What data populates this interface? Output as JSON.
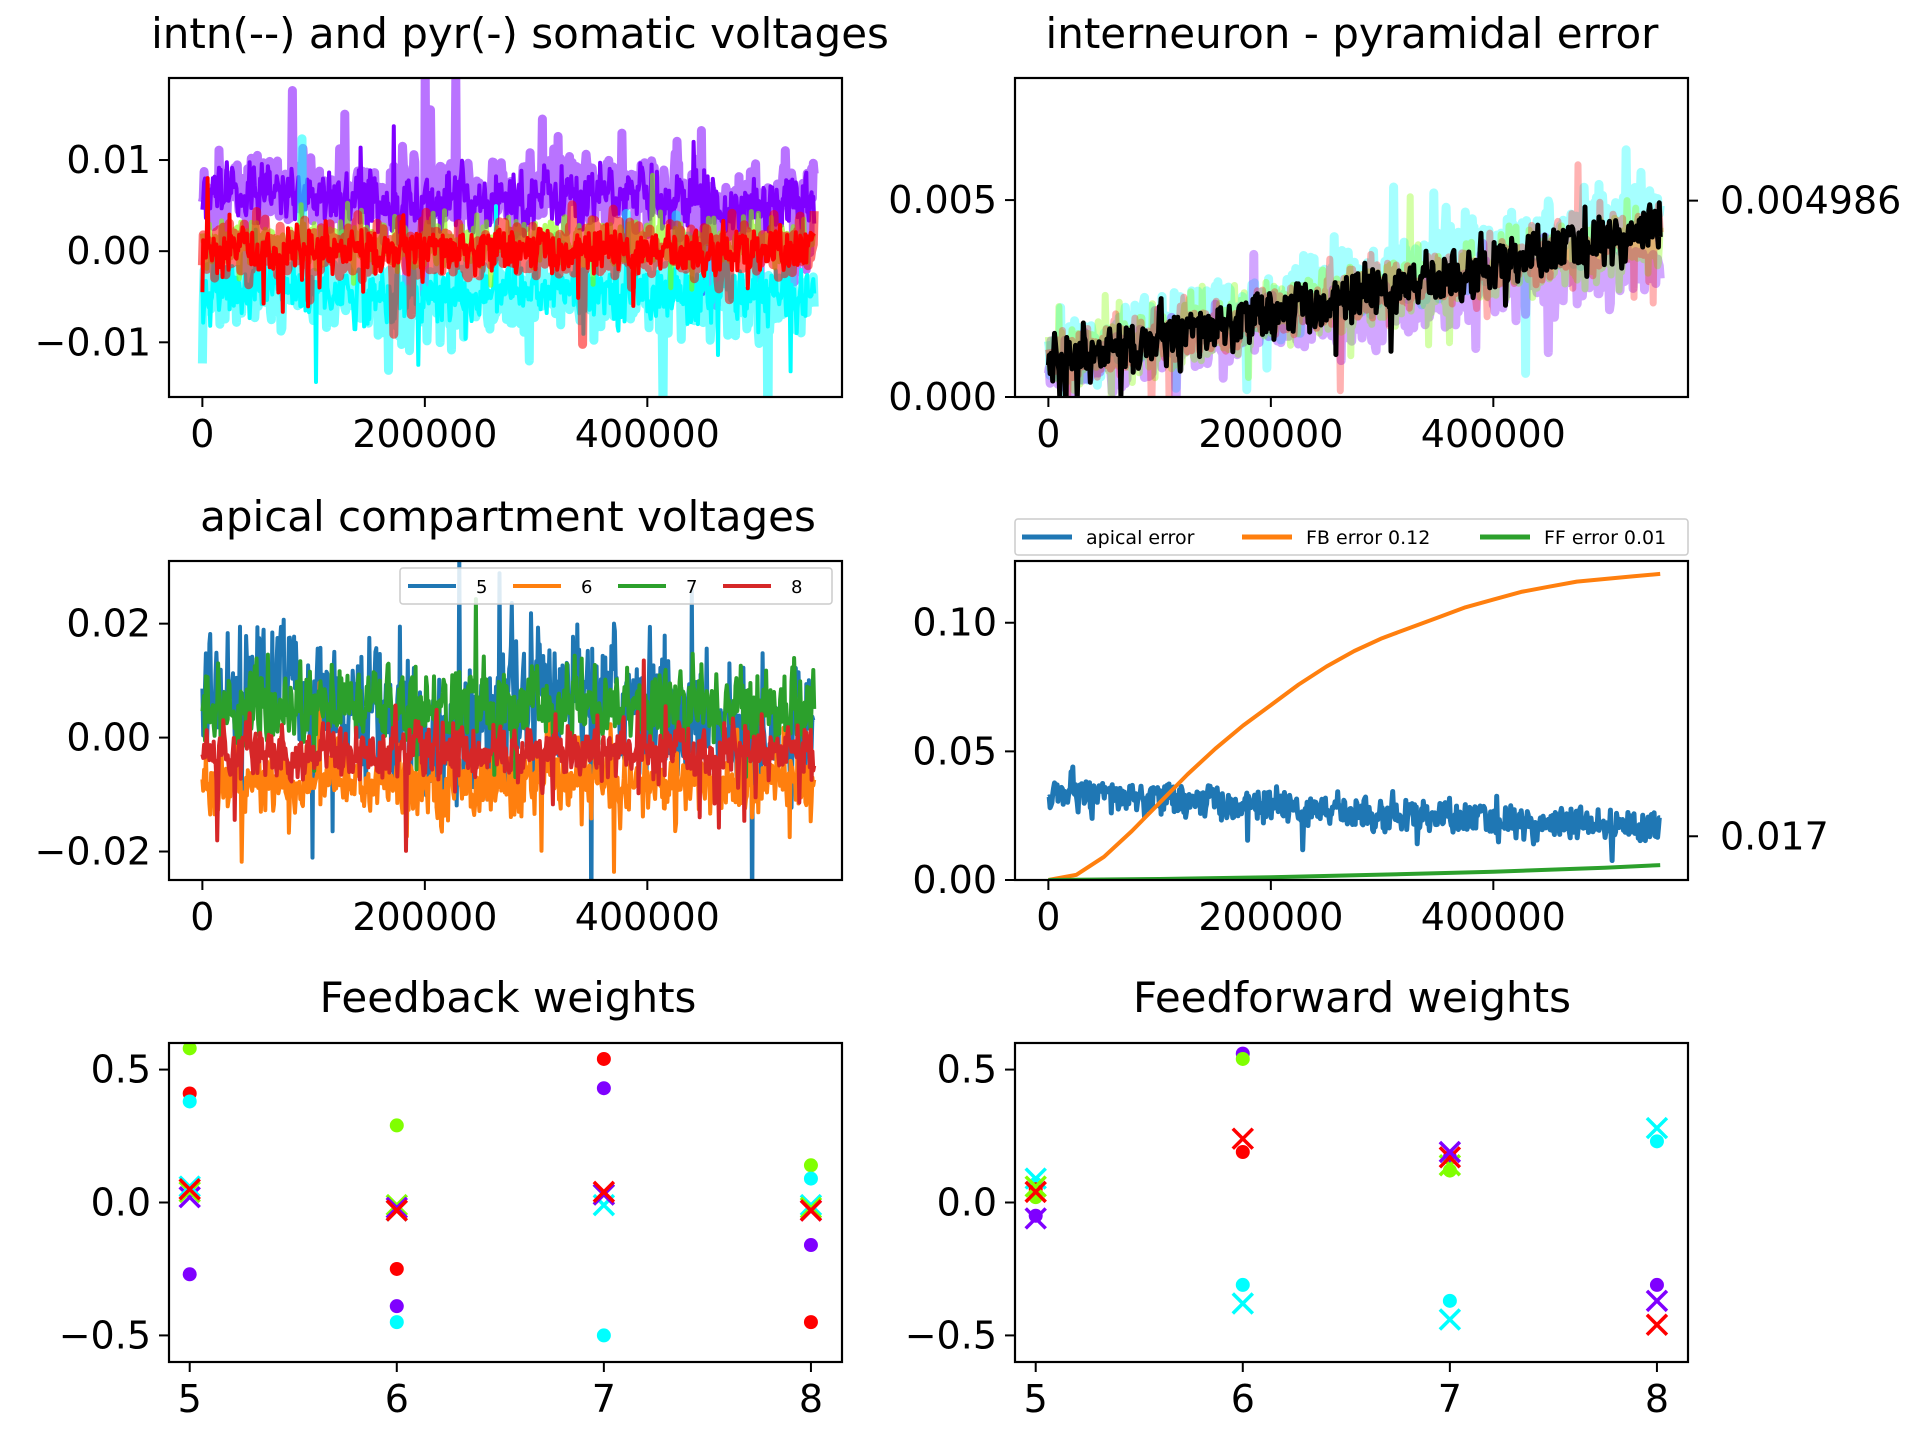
{
  "figure": {
    "background": "#ffffff"
  },
  "chart_data": [
    {
      "id": "somatic",
      "type": "line",
      "title": "intn(--) and pyr(-) somatic voltages",
      "xlim": [
        -30000,
        575000
      ],
      "ylim": [
        -0.016,
        0.019
      ],
      "xticks": [
        0,
        200000,
        400000
      ],
      "xtick_labels": [
        "0",
        "200000",
        "400000"
      ],
      "yticks": [
        0.01,
        0.0,
        -0.01
      ],
      "ytick_labels": [
        "0.01",
        "0.00",
        "−0.01"
      ],
      "x_range": [
        0,
        550000
      ],
      "series": [
        {
          "color": "#7f00ff",
          "mean": 0.006,
          "noise": 0.0025,
          "trend": 0.0005,
          "alpha": 0.55,
          "width": 9
        },
        {
          "color": "#7f00ff",
          "mean": 0.0058,
          "noise": 0.002,
          "trend": 0.0005,
          "alpha": 1.0,
          "width": 4
        },
        {
          "color": "#00ffff",
          "mean": -0.0048,
          "noise": 0.0025,
          "trend": 0.0005,
          "alpha": 0.55,
          "width": 9
        },
        {
          "color": "#00ffff",
          "mean": -0.0045,
          "noise": 0.0019,
          "trend": 0.0005,
          "alpha": 1.0,
          "width": 4
        },
        {
          "color": "#80ff00",
          "mean": 0.0008,
          "noise": 0.0016,
          "trend": 0.0,
          "alpha": 0.6,
          "width": 5
        },
        {
          "color": "#ff0000",
          "mean": 0.0002,
          "noise": 0.0018,
          "trend": 0.0,
          "alpha": 0.55,
          "width": 9
        },
        {
          "color": "#ff0000",
          "mean": 0.0,
          "noise": 0.0015,
          "trend": 0.0,
          "alpha": 1.0,
          "width": 4
        }
      ]
    },
    {
      "id": "intn_pyr_error",
      "type": "line",
      "title": "interneuron - pyramidal error",
      "xlim": [
        -30000,
        575000
      ],
      "ylim": [
        0.0,
        0.0081
      ],
      "xticks": [
        0,
        200000,
        400000
      ],
      "xtick_labels": [
        "0",
        "200000",
        "400000"
      ],
      "yticks": [
        0.0,
        0.005
      ],
      "ytick_labels": [
        "0.000",
        "0.005"
      ],
      "right_ytick": {
        "value": 0.004986,
        "label": "0.004986"
      },
      "x_range": [
        0,
        550000
      ],
      "series": [
        {
          "color": "#00ffff",
          "start": 0.001,
          "end": 0.0048,
          "noise": 0.0005,
          "alpha": 0.35,
          "width": 9
        },
        {
          "color": "#7f00ff",
          "start": 0.0007,
          "end": 0.0034,
          "noise": 0.0004,
          "alpha": 0.35,
          "width": 9
        },
        {
          "color": "#80ff00",
          "start": 0.0009,
          "end": 0.004,
          "noise": 0.0005,
          "alpha": 0.35,
          "width": 7
        },
        {
          "color": "#ff0000",
          "start": 0.0009,
          "end": 0.0042,
          "noise": 0.0004,
          "alpha": 0.3,
          "width": 7
        },
        {
          "color": "#000000",
          "start": 0.0008,
          "end": 0.0043,
          "noise": 0.0004,
          "alpha": 1.0,
          "width": 5
        }
      ]
    },
    {
      "id": "apical",
      "type": "line",
      "title": "apical compartment voltages",
      "xlim": [
        -30000,
        575000
      ],
      "ylim": [
        -0.025,
        0.031
      ],
      "xticks": [
        0,
        200000,
        400000
      ],
      "xtick_labels": [
        "0",
        "200000",
        "400000"
      ],
      "yticks": [
        0.02,
        0.0,
        -0.02
      ],
      "ytick_labels": [
        "0.02",
        "0.00",
        "−0.02"
      ],
      "x_range": [
        0,
        550000
      ],
      "legend": {
        "location": "top-right",
        "columns": 4
      },
      "series": [
        {
          "name": "5",
          "color": "#1f77b4",
          "mean": 0.0045,
          "noise": 0.007,
          "trend": 0.004,
          "width": 4
        },
        {
          "name": "6",
          "color": "#ff7f0e",
          "mean": -0.008,
          "noise": 0.0035,
          "trend": 0.0,
          "width": 4
        },
        {
          "name": "7",
          "color": "#2ca02c",
          "mean": 0.0055,
          "noise": 0.004,
          "trend": 0.0,
          "width": 4
        },
        {
          "name": "8",
          "color": "#d62728",
          "mean": -0.0025,
          "noise": 0.003,
          "trend": 0.0,
          "width": 4
        }
      ]
    },
    {
      "id": "errors",
      "type": "line",
      "title": "",
      "xlim": [
        -30000,
        575000
      ],
      "ylim": [
        0.0,
        0.124
      ],
      "xticks": [
        0,
        200000,
        400000
      ],
      "xtick_labels": [
        "0",
        "200000",
        "400000"
      ],
      "yticks": [
        0.0,
        0.05,
        0.1
      ],
      "ytick_labels": [
        "0.00",
        "0.05",
        "0.10"
      ],
      "right_ytick": {
        "value": 0.017,
        "label": "0.017"
      },
      "legend": {
        "location": "above",
        "columns": 3
      },
      "series": [
        {
          "name": "apical error",
          "color": "#1f77b4",
          "kind": "noisy",
          "start": 0.034,
          "end": 0.019,
          "noise": 0.004,
          "width": 5
        },
        {
          "name": "FB error 0.12",
          "color": "#ff7f0e",
          "kind": "points",
          "x": [
            0,
            25000,
            50000,
            75000,
            100000,
            125000,
            150000,
            175000,
            200000,
            225000,
            250000,
            275000,
            300000,
            325000,
            350000,
            375000,
            400000,
            425000,
            450000,
            475000,
            500000,
            525000,
            550000
          ],
          "y": [
            0.0,
            0.002,
            0.009,
            0.019,
            0.03,
            0.041,
            0.051,
            0.06,
            0.068,
            0.076,
            0.083,
            0.089,
            0.094,
            0.098,
            0.102,
            0.106,
            0.109,
            0.112,
            0.114,
            0.116,
            0.117,
            0.118,
            0.119
          ],
          "width": 4
        },
        {
          "name": "FF error 0.01",
          "color": "#2ca02c",
          "kind": "points",
          "x": [
            0,
            100000,
            200000,
            300000,
            400000,
            500000,
            550000
          ],
          "y": [
            0.0,
            0.0004,
            0.0011,
            0.0021,
            0.0032,
            0.0048,
            0.0058
          ],
          "width": 4
        }
      ]
    },
    {
      "id": "feedback",
      "type": "scatter",
      "title": "Feedback weights",
      "xlim": [
        4.9,
        8.15
      ],
      "ylim": [
        -0.6,
        0.6
      ],
      "xticks": [
        5,
        6,
        7,
        8
      ],
      "xtick_labels": [
        "5",
        "6",
        "7",
        "8"
      ],
      "yticks": [
        0.5,
        0.0,
        -0.5
      ],
      "ytick_labels": [
        "0.5",
        "0.0",
        "−0.5"
      ],
      "points": [
        {
          "x": 5,
          "y": 0.58,
          "color": "#80ff00",
          "marker": "dot"
        },
        {
          "x": 5,
          "y": 0.41,
          "color": "#ff0000",
          "marker": "dot"
        },
        {
          "x": 5,
          "y": 0.38,
          "color": "#00ffff",
          "marker": "dot"
        },
        {
          "x": 5,
          "y": -0.27,
          "color": "#7f00ff",
          "marker": "dot"
        },
        {
          "x": 5,
          "y": 0.02,
          "color": "#7f00ff",
          "marker": "x"
        },
        {
          "x": 5,
          "y": 0.04,
          "color": "#80ff00",
          "marker": "x"
        },
        {
          "x": 5,
          "y": 0.06,
          "color": "#00ffff",
          "marker": "x"
        },
        {
          "x": 5,
          "y": 0.05,
          "color": "#ff0000",
          "marker": "x"
        },
        {
          "x": 6,
          "y": 0.29,
          "color": "#80ff00",
          "marker": "dot"
        },
        {
          "x": 6,
          "y": -0.25,
          "color": "#ff0000",
          "marker": "dot"
        },
        {
          "x": 6,
          "y": -0.39,
          "color": "#7f00ff",
          "marker": "dot"
        },
        {
          "x": 6,
          "y": -0.45,
          "color": "#00ffff",
          "marker": "dot"
        },
        {
          "x": 6,
          "y": -0.01,
          "color": "#80ff00",
          "marker": "x"
        },
        {
          "x": 6,
          "y": -0.03,
          "color": "#00ffff",
          "marker": "x"
        },
        {
          "x": 6,
          "y": -0.02,
          "color": "#7f00ff",
          "marker": "x"
        },
        {
          "x": 6,
          "y": -0.03,
          "color": "#ff0000",
          "marker": "x"
        },
        {
          "x": 7,
          "y": 0.54,
          "color": "#ff0000",
          "marker": "dot"
        },
        {
          "x": 7,
          "y": 0.43,
          "color": "#7f00ff",
          "marker": "dot"
        },
        {
          "x": 7,
          "y": -0.5,
          "color": "#00ffff",
          "marker": "dot"
        },
        {
          "x": 7,
          "y": -0.01,
          "color": "#00ffff",
          "marker": "x"
        },
        {
          "x": 7,
          "y": 0.03,
          "color": "#80ff00",
          "marker": "x"
        },
        {
          "x": 7,
          "y": 0.03,
          "color": "#7f00ff",
          "marker": "x"
        },
        {
          "x": 7,
          "y": 0.04,
          "color": "#ff0000",
          "marker": "x"
        },
        {
          "x": 8,
          "y": 0.14,
          "color": "#80ff00",
          "marker": "dot"
        },
        {
          "x": 8,
          "y": 0.09,
          "color": "#00ffff",
          "marker": "dot"
        },
        {
          "x": 8,
          "y": -0.16,
          "color": "#7f00ff",
          "marker": "dot"
        },
        {
          "x": 8,
          "y": -0.45,
          "color": "#ff0000",
          "marker": "dot"
        },
        {
          "x": 8,
          "y": -0.01,
          "color": "#00ffff",
          "marker": "x"
        },
        {
          "x": 8,
          "y": -0.02,
          "color": "#80ff00",
          "marker": "x"
        },
        {
          "x": 8,
          "y": -0.03,
          "color": "#7f00ff",
          "marker": "x"
        },
        {
          "x": 8,
          "y": -0.03,
          "color": "#ff0000",
          "marker": "x"
        }
      ]
    },
    {
      "id": "feedforward",
      "type": "scatter",
      "title": "Feedforward weights",
      "xlim": [
        4.9,
        8.15
      ],
      "ylim": [
        -0.6,
        0.6
      ],
      "xticks": [
        5,
        6,
        7,
        8
      ],
      "xtick_labels": [
        "5",
        "6",
        "7",
        "8"
      ],
      "yticks": [
        0.5,
        0.0,
        -0.5
      ],
      "ytick_labels": [
        "0.5",
        "0.0",
        "−0.5"
      ],
      "points": [
        {
          "x": 5,
          "y": 0.07,
          "color": "#00ffff",
          "marker": "dot"
        },
        {
          "x": 5,
          "y": 0.05,
          "color": "#ff0000",
          "marker": "dot"
        },
        {
          "x": 5,
          "y": 0.02,
          "color": "#80ff00",
          "marker": "dot"
        },
        {
          "x": 5,
          "y": -0.05,
          "color": "#7f00ff",
          "marker": "dot"
        },
        {
          "x": 5,
          "y": 0.09,
          "color": "#00ffff",
          "marker": "x"
        },
        {
          "x": 5,
          "y": 0.06,
          "color": "#80ff00",
          "marker": "x"
        },
        {
          "x": 5,
          "y": 0.04,
          "color": "#ff0000",
          "marker": "x"
        },
        {
          "x": 5,
          "y": -0.06,
          "color": "#7f00ff",
          "marker": "x"
        },
        {
          "x": 6,
          "y": 0.56,
          "color": "#7f00ff",
          "marker": "dot"
        },
        {
          "x": 6,
          "y": 0.54,
          "color": "#80ff00",
          "marker": "dot"
        },
        {
          "x": 6,
          "y": 0.19,
          "color": "#ff0000",
          "marker": "dot"
        },
        {
          "x": 6,
          "y": -0.31,
          "color": "#00ffff",
          "marker": "dot"
        },
        {
          "x": 6,
          "y": 0.24,
          "color": "#ff0000",
          "marker": "x"
        },
        {
          "x": 6,
          "y": -0.38,
          "color": "#00ffff",
          "marker": "x"
        },
        {
          "x": 7,
          "y": 0.12,
          "color": "#80ff00",
          "marker": "dot"
        },
        {
          "x": 7,
          "y": 0.17,
          "color": "#7f00ff",
          "marker": "dot"
        },
        {
          "x": 7,
          "y": -0.37,
          "color": "#00ffff",
          "marker": "dot"
        },
        {
          "x": 7,
          "y": 0.14,
          "color": "#80ff00",
          "marker": "x"
        },
        {
          "x": 7,
          "y": 0.17,
          "color": "#ff0000",
          "marker": "x"
        },
        {
          "x": 7,
          "y": 0.19,
          "color": "#7f00ff",
          "marker": "x"
        },
        {
          "x": 7,
          "y": -0.44,
          "color": "#00ffff",
          "marker": "x"
        },
        {
          "x": 8,
          "y": 0.23,
          "color": "#00ffff",
          "marker": "dot"
        },
        {
          "x": 8,
          "y": -0.31,
          "color": "#7f00ff",
          "marker": "dot"
        },
        {
          "x": 8,
          "y": 0.28,
          "color": "#00ffff",
          "marker": "x"
        },
        {
          "x": 8,
          "y": -0.37,
          "color": "#7f00ff",
          "marker": "x"
        },
        {
          "x": 8,
          "y": -0.46,
          "color": "#ff0000",
          "marker": "x"
        }
      ]
    }
  ]
}
